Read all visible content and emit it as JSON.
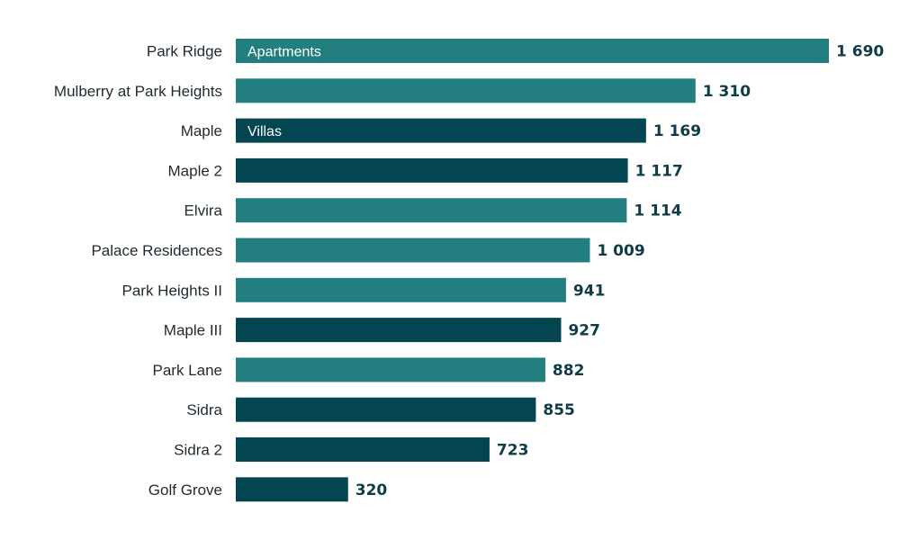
{
  "chart_data": {
    "type": "bar",
    "orientation": "horizontal",
    "title": "",
    "xlabel": "",
    "ylabel": "",
    "categories": [
      "Park Ridge",
      "Mulberry at Park Heights",
      "Maple",
      "Maple 2",
      "Elvira",
      "Palace Residences",
      "Park Heights II",
      "Maple III",
      "Park Lane",
      "Sidra",
      "Sidra 2",
      "Golf Grove"
    ],
    "values": [
      1690,
      1310,
      1169,
      1117,
      1114,
      1009,
      941,
      927,
      882,
      855,
      723,
      320
    ],
    "value_labels": [
      "1 690",
      "1 310",
      "1 169",
      "1 117",
      "1 114",
      "1 009",
      "941",
      "927",
      "882",
      "855",
      "723",
      "320"
    ],
    "types": [
      "Apartments",
      "Apartments",
      "Villas",
      "Villas",
      "Apartments",
      "Apartments",
      "Apartments",
      "Villas",
      "Apartments",
      "Villas",
      "Villas",
      "Villas"
    ],
    "legend": {
      "placement": "in-bar",
      "entries": [
        {
          "name": "Apartments",
          "color": "#237e80"
        },
        {
          "name": "Villas",
          "color": "#034652"
        }
      ]
    },
    "xlim": [
      0,
      1690
    ],
    "grid": false
  },
  "colors": {
    "Apartments": "#237e80",
    "Villas": "#034652",
    "label_text": "#1f2a30",
    "value_text": "#0f3c47"
  }
}
